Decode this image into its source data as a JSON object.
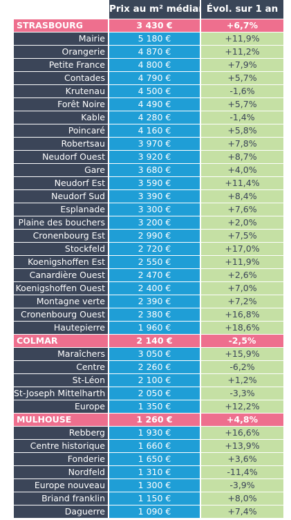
{
  "header": {
    "price_label": "Prix au m² médian",
    "evol_label": "Évol. sur 1 an"
  },
  "rows": [
    {
      "type": "section",
      "name": "STRASBOURG",
      "price": "3 430 €",
      "evol": "+6,7%"
    },
    {
      "type": "item",
      "name": "Mairie",
      "price": "5 180 €",
      "evol": "+11,9%"
    },
    {
      "type": "item",
      "name": "Orangerie",
      "price": "4 870 €",
      "evol": "+11,2%"
    },
    {
      "type": "item",
      "name": "Petite France",
      "price": "4 800 €",
      "evol": "+7,9%"
    },
    {
      "type": "item",
      "name": "Contades",
      "price": "4 790 €",
      "evol": "+5,7%"
    },
    {
      "type": "item",
      "name": "Krutenau",
      "price": "4 500 €",
      "evol": "-1,6%"
    },
    {
      "type": "item",
      "name": "Forêt Noire",
      "price": "4 490 €",
      "evol": "+5,7%"
    },
    {
      "type": "item",
      "name": "Kable",
      "price": "4 280 €",
      "evol": "-1,4%"
    },
    {
      "type": "item",
      "name": "Poincaré",
      "price": "4 160 €",
      "evol": "+5,8%"
    },
    {
      "type": "item",
      "name": "Robertsau",
      "price": "3 970 €",
      "evol": "+7,8%"
    },
    {
      "type": "item",
      "name": "Neudorf Ouest",
      "price": "3 920 €",
      "evol": "+8,7%"
    },
    {
      "type": "item",
      "name": "Gare",
      "price": "3 680 €",
      "evol": "+4,0%"
    },
    {
      "type": "item",
      "name": "Neudorf Est",
      "price": "3 590 €",
      "evol": "+11,4%"
    },
    {
      "type": "item",
      "name": "Neudorf Sud",
      "price": "3 390 €",
      "evol": "+8,4%"
    },
    {
      "type": "item",
      "name": "Esplanade",
      "price": "3 300 €",
      "evol": "+7,6%"
    },
    {
      "type": "item",
      "name": "Plaine des bouchers",
      "price": "3 200 €",
      "evol": "+2,0%"
    },
    {
      "type": "item",
      "name": "Cronenbourg Est",
      "price": "2 990 €",
      "evol": "+7,5%"
    },
    {
      "type": "item",
      "name": "Stockfeld",
      "price": "2 720 €",
      "evol": "+17,0%"
    },
    {
      "type": "item",
      "name": "Koenigshoffen Est",
      "price": "2 550 €",
      "evol": "+11,9%"
    },
    {
      "type": "item",
      "name": "Canardière Ouest",
      "price": "2 470 €",
      "evol": "+2,6%"
    },
    {
      "type": "item",
      "name": "Koenigshoffen Ouest",
      "price": "2 400 €",
      "evol": "+7,0%"
    },
    {
      "type": "item",
      "name": "Montagne verte",
      "price": "2 390 €",
      "evol": "+7,2%"
    },
    {
      "type": "item",
      "name": "Cronenbourg Ouest",
      "price": "2 380 €",
      "evol": "+16,8%"
    },
    {
      "type": "item",
      "name": "Hautepierre",
      "price": "1 960 €",
      "evol": "+18,6%"
    },
    {
      "type": "section",
      "name": "COLMAR",
      "price": "2 140 €",
      "evol": "-2,5%"
    },
    {
      "type": "item",
      "name": "Maraîchers",
      "price": "3 050 €",
      "evol": "+15,9%"
    },
    {
      "type": "item",
      "name": "Centre",
      "price": "2 260 €",
      "evol": "-6,2%"
    },
    {
      "type": "item",
      "name": "St-Léon",
      "price": "2 100 €",
      "evol": "+1,2%"
    },
    {
      "type": "item",
      "name": "St-Joseph Mittelharth",
      "price": "2 050 €",
      "evol": "-3,3%"
    },
    {
      "type": "item",
      "name": "Europe",
      "price": "1 350 €",
      "evol": "+12,2%"
    },
    {
      "type": "section",
      "name": "MULHOUSE",
      "price": "1 260 €",
      "evol": "+4,8%"
    },
    {
      "type": "item",
      "name": "Rebberg",
      "price": "1 930 €",
      "evol": "+16,6%"
    },
    {
      "type": "item",
      "name": "Centre historique",
      "price": "1 660 €",
      "evol": "+13,9%"
    },
    {
      "type": "item",
      "name": "Fonderie",
      "price": "1 650 €",
      "evol": "+3,6%"
    },
    {
      "type": "item",
      "name": "Nordfeld",
      "price": "1 310 €",
      "evol": "-11,4%"
    },
    {
      "type": "item",
      "name": "Europe nouveau",
      "price": "1 300 €",
      "evol": "-3,9%"
    },
    {
      "type": "item",
      "name": "Briand franklin",
      "price": "1 150 €",
      "evol": "+8,0%"
    },
    {
      "type": "item",
      "name": "Daguerre",
      "price": "1 090 €",
      "evol": "+7,4%"
    }
  ]
}
